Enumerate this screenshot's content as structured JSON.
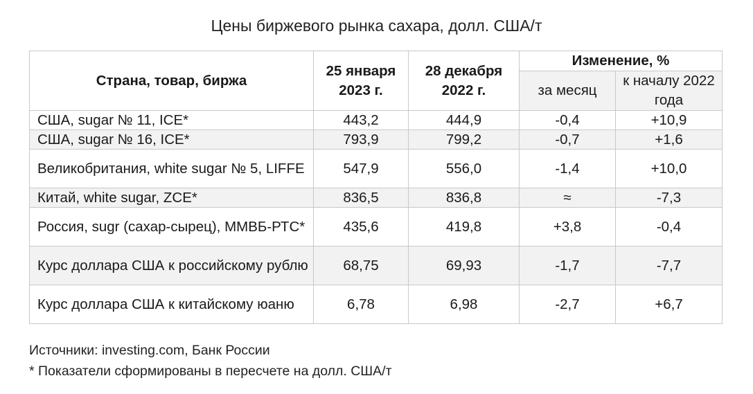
{
  "title": "Цены биржевого рынка сахара, долл. США/т",
  "table": {
    "headers": {
      "col1": "Страна, товар, биржа",
      "col2": "25 января 2023 г.",
      "col3": "28 декабря 2022 г.",
      "change": "Изменение, %",
      "change_month": "за месяц",
      "change_year": "к началу 2022  года"
    },
    "rows": [
      {
        "name": "США, sugar № 11, ICE*",
        "v1": "443,2",
        "v2": "444,9",
        "m": "-0,4",
        "y": "+10,9"
      },
      {
        "name": "США, sugar № 16, ICE*",
        "v1": "793,9",
        "v2": "799,2",
        "m": "-0,7",
        "y": "+1,6"
      },
      {
        "name": "Великобритания, white sugar № 5, LIFFE",
        "v1": "547,9",
        "v2": "556,0",
        "m": "-1,4",
        "y": "+10,0"
      },
      {
        "name": "Китай, white sugar, ZCE*",
        "v1": "836,5",
        "v2": "836,8",
        "m": "≈",
        "y": "-7,3"
      },
      {
        "name": "Россия, sugr (сахар-сырец), ММВБ-РТС*",
        "v1": "435,6",
        "v2": "419,8",
        "m": "+3,8",
        "y": "-0,4"
      },
      {
        "name": "Курс доллара США к российскому рублю",
        "v1": "68,75",
        "v2": "69,93",
        "m": "-1,7",
        "y": "-7,7"
      },
      {
        "name": "Курс доллара США к китайскому юаню",
        "v1": "6,78",
        "v2": "6,98",
        "m": "-2,7",
        "y": "+6,7"
      }
    ]
  },
  "notes": {
    "sources": "Источники: investing.com, Банк России",
    "footnote": "* Показатели сформированы в пересчете на долл. США/т"
  }
}
